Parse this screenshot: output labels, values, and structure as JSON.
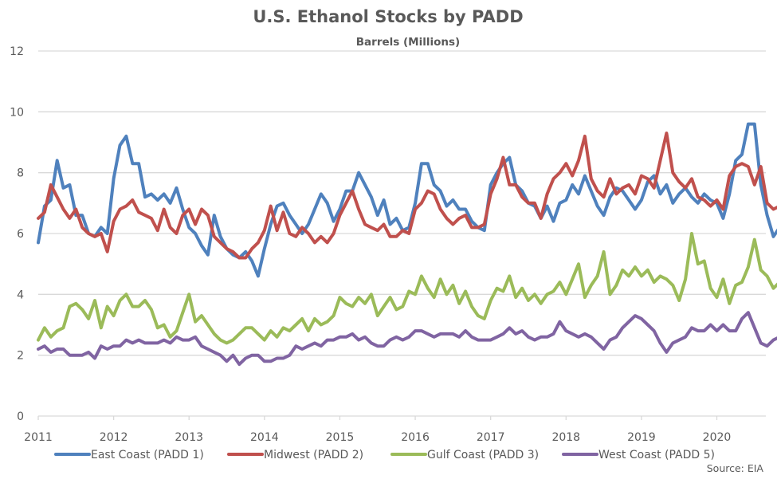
{
  "chart_data": {
    "type": "line",
    "title": "U.S. Ethanol Stocks by PADD",
    "subtitle": "Barrels (Millions)",
    "xlabel": "",
    "ylabel": "",
    "source": "Source: EIA",
    "xlim": [
      2011,
      2020.65
    ],
    "ylim": [
      0,
      12
    ],
    "x_ticks": [
      "2011",
      "2012",
      "2013",
      "2014",
      "2015",
      "2016",
      "2017",
      "2018",
      "2019",
      "2020"
    ],
    "y_ticks": [
      "0",
      "2",
      "4",
      "6",
      "8",
      "10",
      "12"
    ],
    "grid": true,
    "legend_position": "bottom",
    "x_start": 2011.0,
    "x_step_years": 0.0833333,
    "series": [
      {
        "name": "East Coast (PADD 1)",
        "color": "#4f81bd",
        "values": [
          5.7,
          6.9,
          7.1,
          8.4,
          7.5,
          7.6,
          6.6,
          6.6,
          6.0,
          5.9,
          6.2,
          6.0,
          7.8,
          8.9,
          9.2,
          8.3,
          8.3,
          7.2,
          7.3,
          7.1,
          7.3,
          7.0,
          7.5,
          6.8,
          6.2,
          6.0,
          5.6,
          5.3,
          6.6,
          5.9,
          5.5,
          5.3,
          5.2,
          5.4,
          5.1,
          4.6,
          5.5,
          6.3,
          6.9,
          7.0,
          6.6,
          6.3,
          6.0,
          6.3,
          6.8,
          7.3,
          7.0,
          6.4,
          6.8,
          7.4,
          7.4,
          8.0,
          7.6,
          7.2,
          6.6,
          7.1,
          6.3,
          6.5,
          6.1,
          6.2,
          7.0,
          8.3,
          8.3,
          7.6,
          7.4,
          6.9,
          7.1,
          6.8,
          6.8,
          6.4,
          6.2,
          6.1,
          7.6,
          8.0,
          8.3,
          8.5,
          7.6,
          7.4,
          7.0,
          6.9,
          6.5,
          6.9,
          6.4,
          7.0,
          7.1,
          7.6,
          7.3,
          7.9,
          7.4,
          6.9,
          6.6,
          7.2,
          7.5,
          7.4,
          7.1,
          6.8,
          7.1,
          7.7,
          7.9,
          7.3,
          7.6,
          7.0,
          7.3,
          7.5,
          7.2,
          7.0,
          7.3,
          7.1,
          7.0,
          6.5,
          7.3,
          8.4,
          8.6,
          9.6,
          9.6,
          7.6,
          6.6,
          5.9,
          6.2,
          6.6
        ]
      },
      {
        "name": "Midwest (PADD 2)",
        "color": "#c0504d",
        "values": [
          6.5,
          6.7,
          7.6,
          7.2,
          6.8,
          6.5,
          6.8,
          6.2,
          6.0,
          5.9,
          6.0,
          5.4,
          6.4,
          6.8,
          6.9,
          7.1,
          6.7,
          6.6,
          6.5,
          6.1,
          6.8,
          6.2,
          6.0,
          6.6,
          6.8,
          6.3,
          6.8,
          6.6,
          5.9,
          5.7,
          5.5,
          5.4,
          5.2,
          5.2,
          5.5,
          5.7,
          6.1,
          6.9,
          6.1,
          6.7,
          6.0,
          5.9,
          6.2,
          6.0,
          5.7,
          5.9,
          5.7,
          6.0,
          6.6,
          7.0,
          7.4,
          6.8,
          6.3,
          6.2,
          6.1,
          6.3,
          5.9,
          5.9,
          6.1,
          6.0,
          6.8,
          7.0,
          7.4,
          7.3,
          6.8,
          6.5,
          6.3,
          6.5,
          6.6,
          6.2,
          6.2,
          6.3,
          7.3,
          7.8,
          8.5,
          7.6,
          7.6,
          7.2,
          7.0,
          7.0,
          6.5,
          7.3,
          7.8,
          8.0,
          8.3,
          7.9,
          8.4,
          9.2,
          7.8,
          7.4,
          7.2,
          7.8,
          7.3,
          7.5,
          7.6,
          7.3,
          7.9,
          7.8,
          7.5,
          8.4,
          9.3,
          8.0,
          7.7,
          7.5,
          7.8,
          7.2,
          7.1,
          6.9,
          7.1,
          6.8,
          7.9,
          8.2,
          8.3,
          8.2,
          7.6,
          8.2,
          7.0,
          6.8,
          6.9,
          6.5
        ]
      },
      {
        "name": "Gulf Coast (PADD 3)",
        "color": "#9bbb59",
        "values": [
          2.5,
          2.9,
          2.6,
          2.8,
          2.9,
          3.6,
          3.7,
          3.5,
          3.2,
          3.8,
          2.9,
          3.6,
          3.3,
          3.8,
          4.0,
          3.6,
          3.6,
          3.8,
          3.5,
          2.9,
          3.0,
          2.6,
          2.8,
          3.4,
          4.0,
          3.1,
          3.3,
          3.0,
          2.7,
          2.5,
          2.4,
          2.5,
          2.7,
          2.9,
          2.9,
          2.7,
          2.5,
          2.8,
          2.6,
          2.9,
          2.8,
          3.0,
          3.2,
          2.8,
          3.2,
          3.0,
          3.1,
          3.3,
          3.9,
          3.7,
          3.6,
          3.9,
          3.7,
          4.0,
          3.3,
          3.6,
          3.9,
          3.5,
          3.6,
          4.1,
          4.0,
          4.6,
          4.2,
          3.9,
          4.5,
          4.0,
          4.3,
          3.7,
          4.1,
          3.6,
          3.3,
          3.2,
          3.8,
          4.2,
          4.1,
          4.6,
          3.9,
          4.2,
          3.8,
          4.0,
          3.7,
          4.0,
          4.1,
          4.4,
          4.0,
          4.5,
          5.0,
          3.9,
          4.3,
          4.6,
          5.4,
          4.0,
          4.3,
          4.8,
          4.6,
          4.9,
          4.6,
          4.8,
          4.4,
          4.6,
          4.5,
          4.3,
          3.8,
          4.5,
          6.0,
          5.0,
          5.1,
          4.2,
          3.9,
          4.5,
          3.7,
          4.3,
          4.4,
          4.9,
          5.8,
          4.8,
          4.6,
          4.2,
          4.4,
          3.7
        ]
      },
      {
        "name": "West Coast (PADD 5)",
        "color": "#8064a2",
        "values": [
          2.2,
          2.3,
          2.1,
          2.2,
          2.2,
          2.0,
          2.0,
          2.0,
          2.1,
          1.9,
          2.3,
          2.2,
          2.3,
          2.3,
          2.5,
          2.4,
          2.5,
          2.4,
          2.4,
          2.4,
          2.5,
          2.4,
          2.6,
          2.5,
          2.5,
          2.6,
          2.3,
          2.2,
          2.1,
          2.0,
          1.8,
          2.0,
          1.7,
          1.9,
          2.0,
          2.0,
          1.8,
          1.8,
          1.9,
          1.9,
          2.0,
          2.3,
          2.2,
          2.3,
          2.4,
          2.3,
          2.5,
          2.5,
          2.6,
          2.6,
          2.7,
          2.5,
          2.6,
          2.4,
          2.3,
          2.3,
          2.5,
          2.6,
          2.5,
          2.6,
          2.8,
          2.8,
          2.7,
          2.6,
          2.7,
          2.7,
          2.7,
          2.6,
          2.8,
          2.6,
          2.5,
          2.5,
          2.5,
          2.6,
          2.7,
          2.9,
          2.7,
          2.8,
          2.6,
          2.5,
          2.6,
          2.6,
          2.7,
          3.1,
          2.8,
          2.7,
          2.6,
          2.7,
          2.6,
          2.4,
          2.2,
          2.5,
          2.6,
          2.9,
          3.1,
          3.3,
          3.2,
          3.0,
          2.8,
          2.4,
          2.1,
          2.4,
          2.5,
          2.6,
          2.9,
          2.8,
          2.8,
          3.0,
          2.8,
          3.0,
          2.8,
          2.8,
          3.2,
          3.4,
          2.9,
          2.4,
          2.3,
          2.5,
          2.6,
          2.9
        ]
      }
    ]
  }
}
